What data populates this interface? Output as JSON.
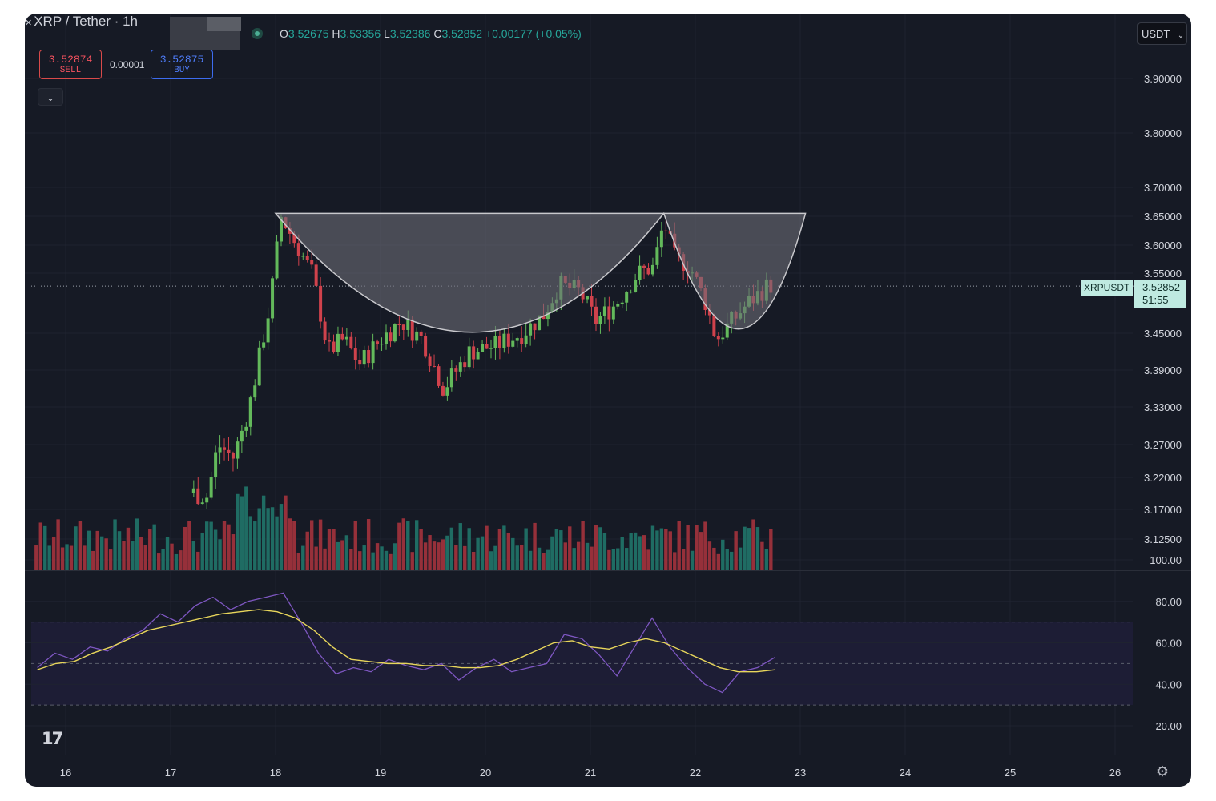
{
  "header": {
    "symbol_title": "XRP / Tether · 1h",
    "ohlc": {
      "open_label": "O",
      "open": "3.52675",
      "high_label": "H",
      "high": "3.53356",
      "low_label": "L",
      "low": "3.52386",
      "close_label": "C",
      "close": "3.52852",
      "change": "+0.00177 (+0.05%)"
    },
    "sell": {
      "price": "3.52874",
      "label": "SELL"
    },
    "buy": {
      "price": "3.52875",
      "label": "BUY"
    },
    "spread": "0.00001",
    "currency": "USDT"
  },
  "badges": {
    "symbol": "XRPUSDT",
    "price": "3.52852",
    "countdown": "51:55"
  },
  "colors": {
    "background": "#161a25",
    "up": "#26a69a",
    "down": "#ef5350",
    "candle_up": "#63b95b",
    "candle_down": "#d0424c",
    "volume_up": "#1f6c63",
    "volume_down": "#96303a",
    "rsi_line": "#7e57c2",
    "rsi_ma": "#e8d65b",
    "pattern_fill": "#6d6d76",
    "accent": "#bfeae1"
  },
  "icons": {
    "logo": "tradingview-logo-icon",
    "settings": "gear-icon",
    "collapse": "chevron-down-icon"
  },
  "chart_data": [
    {
      "type": "candlestick",
      "series_name": "XRPUSDT",
      "x_tick_labels": [
        "16",
        "17",
        "18",
        "19",
        "20",
        "21",
        "22",
        "23",
        "24",
        "25",
        "26"
      ],
      "y_tick_labels": [
        "3.90000",
        "3.80000",
        "3.70000",
        "3.65000",
        "3.60000",
        "3.55000",
        "3.45000",
        "3.39000",
        "3.33000",
        "3.27000",
        "3.22000",
        "3.17000",
        "3.12500"
      ],
      "ylim": [
        3.06,
        3.93
      ],
      "last_price": 3.52852,
      "grid": true,
      "volume_overlay": true,
      "annotation": "cup-and-handle shape drawn over price from 18 to 22",
      "price_points": [
        [
          "15.75",
          3.18
        ],
        [
          "16.0",
          3.17
        ],
        [
          "16.5",
          3.18
        ],
        [
          "16.9",
          3.19
        ],
        [
          "17.1",
          3.2
        ],
        [
          "17.35",
          3.19
        ],
        [
          "17.45",
          3.27
        ],
        [
          "17.6",
          3.25
        ],
        [
          "17.75",
          3.33
        ],
        [
          "17.95",
          3.5
        ],
        [
          "18.05",
          3.65
        ],
        [
          "18.2",
          3.6
        ],
        [
          "18.35",
          3.55
        ],
        [
          "18.5",
          3.42
        ],
        [
          "18.65",
          3.44
        ],
        [
          "18.8",
          3.4
        ],
        [
          "19.0",
          3.44
        ],
        [
          "19.2",
          3.47
        ],
        [
          "19.4",
          3.44
        ],
        [
          "19.6",
          3.36
        ],
        [
          "19.85",
          3.42
        ],
        [
          "20.1",
          3.43
        ],
        [
          "20.35",
          3.45
        ],
        [
          "20.55",
          3.48
        ],
        [
          "20.7",
          3.53
        ],
        [
          "20.9",
          3.52
        ],
        [
          "21.05",
          3.47
        ],
        [
          "21.25",
          3.5
        ],
        [
          "21.45",
          3.55
        ],
        [
          "21.6",
          3.56
        ],
        [
          "21.7",
          3.64
        ],
        [
          "21.8",
          3.58
        ],
        [
          "21.95",
          3.56
        ],
        [
          "22.1",
          3.5
        ],
        [
          "22.2",
          3.44
        ],
        [
          "22.35",
          3.47
        ],
        [
          "22.5",
          3.5
        ],
        [
          "22.7",
          3.53
        ]
      ]
    },
    {
      "type": "line",
      "title": "RSI",
      "x_tick_labels": [
        "16",
        "17",
        "18",
        "19",
        "20",
        "21",
        "22",
        "23",
        "24",
        "25",
        "26"
      ],
      "y_tick_labels": [
        "100.00",
        "80.00",
        "60.00",
        "40.00",
        "20.00"
      ],
      "ylim": [
        13,
        102
      ],
      "band": [
        30,
        70
      ],
      "series": [
        {
          "values": [
            48,
            55,
            52,
            58,
            56,
            62,
            66,
            74,
            70,
            78,
            82,
            76,
            80,
            82,
            84,
            70,
            55,
            45,
            48,
            46,
            52,
            49,
            47,
            50,
            42,
            48,
            52,
            46,
            48,
            50,
            64,
            62,
            54,
            44,
            58,
            72,
            58,
            48,
            40,
            36,
            46,
            48,
            53
          ]
        },
        {
          "values": [
            47,
            50,
            51,
            55,
            58,
            62,
            66,
            68,
            70,
            72,
            74,
            75,
            76,
            75,
            72,
            66,
            58,
            52,
            51,
            50,
            50,
            49,
            49,
            48,
            48,
            49,
            52,
            56,
            60,
            61,
            58,
            57,
            60,
            62,
            60,
            56,
            52,
            48,
            46,
            46,
            47
          ]
        }
      ]
    }
  ]
}
